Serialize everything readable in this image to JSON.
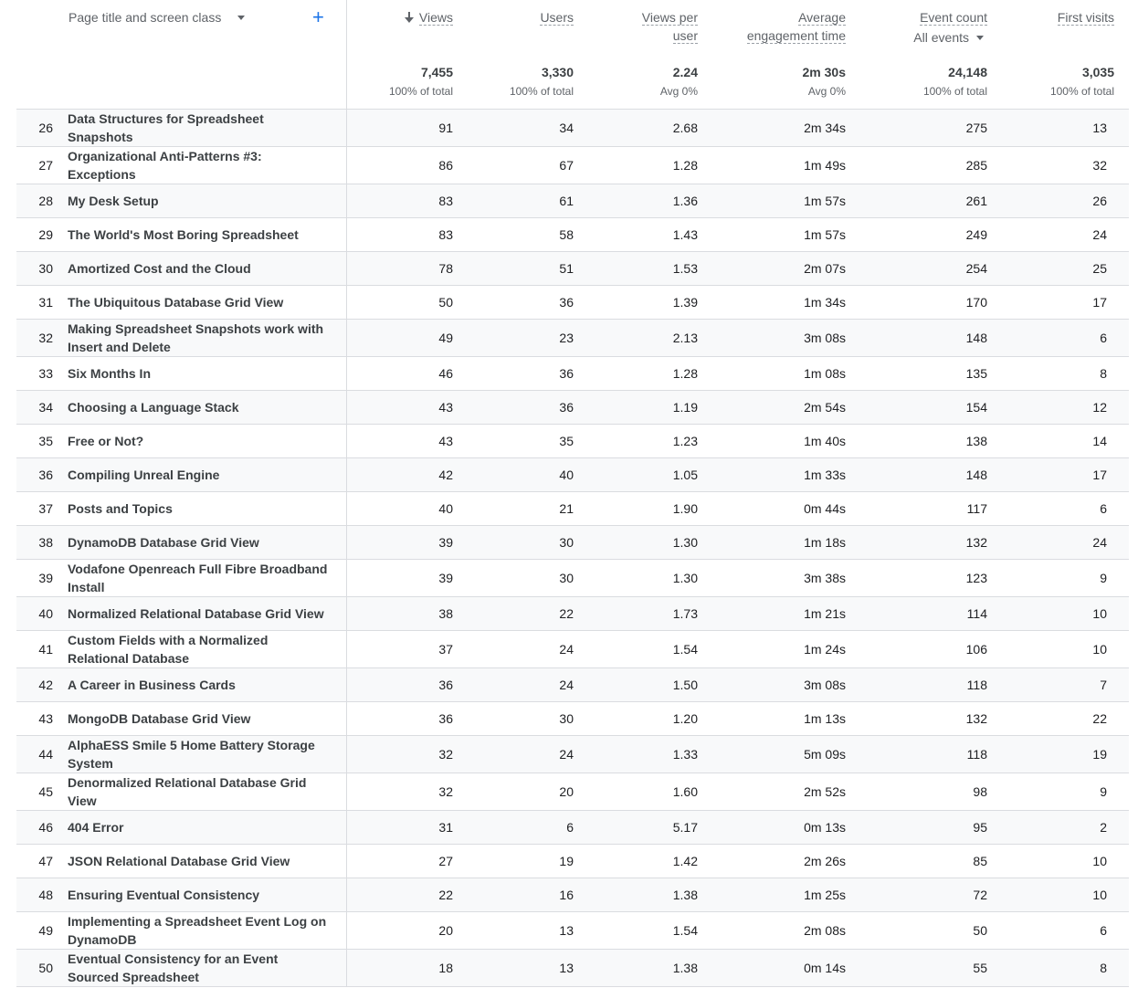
{
  "dimension": {
    "label": "Page title and screen class"
  },
  "columns": [
    {
      "key": "views",
      "label": "Views",
      "sorted": true
    },
    {
      "key": "users",
      "label": "Users"
    },
    {
      "key": "views_per_user",
      "label": "Views per user"
    },
    {
      "key": "avg_engagement",
      "label": "Average engagement time"
    },
    {
      "key": "event_count",
      "label": "Event count",
      "filter": "All events"
    },
    {
      "key": "first_visits",
      "label": "First visits"
    }
  ],
  "totals": [
    {
      "value": "7,455",
      "sub": "100% of total"
    },
    {
      "value": "3,330",
      "sub": "100% of total"
    },
    {
      "value": "2.24",
      "sub": "Avg 0%"
    },
    {
      "value": "2m 30s",
      "sub": "Avg 0%"
    },
    {
      "value": "24,148",
      "sub": "100% of total"
    },
    {
      "value": "3,035",
      "sub": "100% of total"
    }
  ],
  "rows": [
    {
      "rank": "26",
      "title": "Data Structures for Spreadsheet Snapshots",
      "views": "91",
      "users": "34",
      "vpu": "2.68",
      "eng": "2m 34s",
      "events": "275",
      "first": "13"
    },
    {
      "rank": "27",
      "title": "Organizational Anti-Patterns #3: Exceptions",
      "views": "86",
      "users": "67",
      "vpu": "1.28",
      "eng": "1m 49s",
      "events": "285",
      "first": "32"
    },
    {
      "rank": "28",
      "title": "My Desk Setup",
      "views": "83",
      "users": "61",
      "vpu": "1.36",
      "eng": "1m 57s",
      "events": "261",
      "first": "26"
    },
    {
      "rank": "29",
      "title": "The World's Most Boring Spreadsheet",
      "views": "83",
      "users": "58",
      "vpu": "1.43",
      "eng": "1m 57s",
      "events": "249",
      "first": "24"
    },
    {
      "rank": "30",
      "title": "Amortized Cost and the Cloud",
      "views": "78",
      "users": "51",
      "vpu": "1.53",
      "eng": "2m 07s",
      "events": "254",
      "first": "25"
    },
    {
      "rank": "31",
      "title": "The Ubiquitous Database Grid View",
      "views": "50",
      "users": "36",
      "vpu": "1.39",
      "eng": "1m 34s",
      "events": "170",
      "first": "17"
    },
    {
      "rank": "32",
      "title": "Making Spreadsheet Snapshots work with Insert and Delete",
      "views": "49",
      "users": "23",
      "vpu": "2.13",
      "eng": "3m 08s",
      "events": "148",
      "first": "6"
    },
    {
      "rank": "33",
      "title": "Six Months In",
      "views": "46",
      "users": "36",
      "vpu": "1.28",
      "eng": "1m 08s",
      "events": "135",
      "first": "8"
    },
    {
      "rank": "34",
      "title": "Choosing a Language Stack",
      "views": "43",
      "users": "36",
      "vpu": "1.19",
      "eng": "2m 54s",
      "events": "154",
      "first": "12"
    },
    {
      "rank": "35",
      "title": "Free or Not?",
      "views": "43",
      "users": "35",
      "vpu": "1.23",
      "eng": "1m 40s",
      "events": "138",
      "first": "14"
    },
    {
      "rank": "36",
      "title": "Compiling Unreal Engine",
      "views": "42",
      "users": "40",
      "vpu": "1.05",
      "eng": "1m 33s",
      "events": "148",
      "first": "17"
    },
    {
      "rank": "37",
      "title": "Posts and Topics",
      "views": "40",
      "users": "21",
      "vpu": "1.90",
      "eng": "0m 44s",
      "events": "117",
      "first": "6"
    },
    {
      "rank": "38",
      "title": "DynamoDB Database Grid View",
      "views": "39",
      "users": "30",
      "vpu": "1.30",
      "eng": "1m 18s",
      "events": "132",
      "first": "24"
    },
    {
      "rank": "39",
      "title": "Vodafone Openreach Full Fibre Broadband Install",
      "views": "39",
      "users": "30",
      "vpu": "1.30",
      "eng": "3m 38s",
      "events": "123",
      "first": "9"
    },
    {
      "rank": "40",
      "title": "Normalized Relational Database Grid View",
      "views": "38",
      "users": "22",
      "vpu": "1.73",
      "eng": "1m 21s",
      "events": "114",
      "first": "10"
    },
    {
      "rank": "41",
      "title": "Custom Fields with a Normalized Relational Database",
      "views": "37",
      "users": "24",
      "vpu": "1.54",
      "eng": "1m 24s",
      "events": "106",
      "first": "10"
    },
    {
      "rank": "42",
      "title": "A Career in Business Cards",
      "views": "36",
      "users": "24",
      "vpu": "1.50",
      "eng": "3m 08s",
      "events": "118",
      "first": "7"
    },
    {
      "rank": "43",
      "title": "MongoDB Database Grid View",
      "views": "36",
      "users": "30",
      "vpu": "1.20",
      "eng": "1m 13s",
      "events": "132",
      "first": "22"
    },
    {
      "rank": "44",
      "title": "AlphaESS Smile 5 Home Battery Storage System",
      "views": "32",
      "users": "24",
      "vpu": "1.33",
      "eng": "5m 09s",
      "events": "118",
      "first": "19"
    },
    {
      "rank": "45",
      "title": "Denormalized Relational Database Grid View",
      "views": "32",
      "users": "20",
      "vpu": "1.60",
      "eng": "2m 52s",
      "events": "98",
      "first": "9"
    },
    {
      "rank": "46",
      "title": "404 Error",
      "views": "31",
      "users": "6",
      "vpu": "5.17",
      "eng": "0m 13s",
      "events": "95",
      "first": "2"
    },
    {
      "rank": "47",
      "title": "JSON Relational Database Grid View",
      "views": "27",
      "users": "19",
      "vpu": "1.42",
      "eng": "2m 26s",
      "events": "85",
      "first": "10"
    },
    {
      "rank": "48",
      "title": "Ensuring Eventual Consistency",
      "views": "22",
      "users": "16",
      "vpu": "1.38",
      "eng": "1m 25s",
      "events": "72",
      "first": "10"
    },
    {
      "rank": "49",
      "title": "Implementing a Spreadsheet Event Log on DynamoDB",
      "views": "20",
      "users": "13",
      "vpu": "1.54",
      "eng": "2m 08s",
      "events": "50",
      "first": "6"
    },
    {
      "rank": "50",
      "title": "Eventual Consistency for an Event Sourced Spreadsheet",
      "views": "18",
      "users": "13",
      "vpu": "1.38",
      "eng": "0m 14s",
      "events": "55",
      "first": "8"
    }
  ]
}
